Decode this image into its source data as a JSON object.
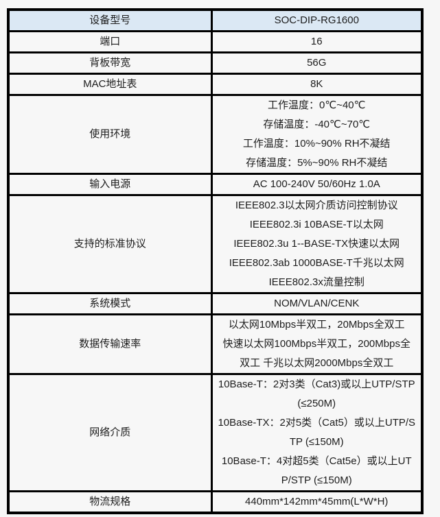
{
  "theme": {
    "page_bg": "#f6f6f6",
    "cell_bg": "#f7f7f7",
    "header_bg": "#dbe8f4",
    "border_color": "#000000",
    "text_color": "#1c1c1c"
  },
  "table": {
    "rows": [
      {
        "label": "设备型号",
        "values": [
          "SOC-DIP-RG1600"
        ]
      },
      {
        "label": "端口",
        "values": [
          "16"
        ]
      },
      {
        "label": "背板带宽",
        "values": [
          "56G"
        ]
      },
      {
        "label": "MAC地址表",
        "values": [
          "8K"
        ]
      },
      {
        "label": "使用环境",
        "values": [
          "工作温度：0℃~40℃",
          "存储温度：-40℃~70℃",
          "工作温度：10%~90% RH不凝结",
          "存储温度：5%~90% RH不凝结"
        ]
      },
      {
        "label": "输入电源",
        "values": [
          "AC 100-240V 50/60Hz 1.0A"
        ]
      },
      {
        "label": "支持的标准协议",
        "values": [
          "IEEE802.3以太网介质访问控制协议",
          "IEEE802.3i 10BASE-T以太网",
          "IEEE802.3u 1--BASE-TX快速以太网",
          "IEEE802.3ab 1000BASE-T千兆以太网",
          "IEEE802.3x流量控制"
        ]
      },
      {
        "label": "系统模式",
        "values": [
          "NOM/VLAN/CENK"
        ]
      },
      {
        "label": "数据传输速率",
        "values": [
          "以太网10Mbps半双工，20Mbps全双工",
          "快速以太网100Mbps半双工，200Mbps全",
          "双工 千兆以太网2000Mbps全双工"
        ]
      },
      {
        "label": "网络介质",
        "values": [
          "10Base-T：2对3类（Cat3)或以上UTP/STP",
          "(≤250M)",
          "10Base-TX：2对5类（Cat5）或以上UTP/S",
          "TP (≤150M)",
          "10Base-T：4对超5类（Cat5e）或以上UT",
          "P/STP (≤150M)"
        ]
      },
      {
        "label": "物流规格",
        "values": [
          "440mm*142mm*45mm(L*W*H)"
        ]
      }
    ]
  }
}
